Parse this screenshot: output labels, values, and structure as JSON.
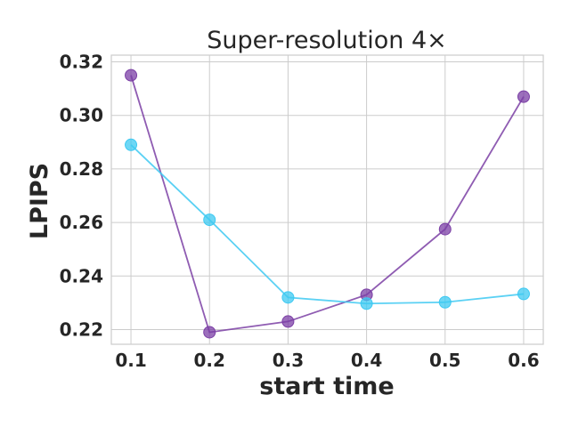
{
  "chart_data": {
    "type": "line",
    "title": "Super-resolution 4×",
    "xlabel": "start time",
    "ylabel": "LPIPS",
    "x": [
      0.1,
      0.2,
      0.3,
      0.4,
      0.5,
      0.6
    ],
    "x_ticks": [
      "0.1",
      "0.2",
      "0.3",
      "0.4",
      "0.5",
      "0.6"
    ],
    "y_ticks": [
      "0.22",
      "0.24",
      "0.26",
      "0.28",
      "0.30",
      "0.32"
    ],
    "xlim": [
      0.075,
      0.625
    ],
    "ylim": [
      0.2145,
      0.3225
    ],
    "grid": true,
    "series": [
      {
        "color": "#7b3fa5",
        "values": [
          0.315,
          0.219,
          0.223,
          0.233,
          0.2575,
          0.307
        ]
      },
      {
        "color": "#3ec9f2",
        "values": [
          0.289,
          0.261,
          0.232,
          0.2297,
          0.2302,
          0.2333
        ]
      }
    ]
  }
}
